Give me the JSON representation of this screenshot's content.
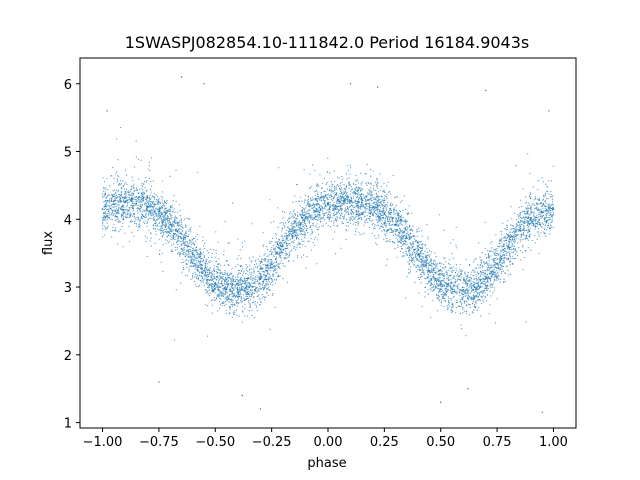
{
  "chart_data": {
    "type": "scatter",
    "title": "1SWASPJ082854.10-111842.0 Period 16184.9043s",
    "xlabel": "phase",
    "ylabel": "flux",
    "xlim": [
      -1.1,
      1.1
    ],
    "ylim": [
      0.92,
      6.38
    ],
    "xticks": [
      -1.0,
      -0.75,
      -0.5,
      -0.25,
      0.0,
      0.25,
      0.5,
      0.75,
      1.0
    ],
    "xtick_labels": [
      "−1.00",
      "−0.75",
      "−0.50",
      "−0.25",
      "0.00",
      "0.25",
      "0.50",
      "0.75",
      "1.00"
    ],
    "yticks": [
      1,
      2,
      3,
      4,
      5,
      6
    ],
    "ytick_labels": [
      "1",
      "2",
      "3",
      "4",
      "5",
      "6"
    ],
    "grid": false,
    "legend": "none",
    "point_color": "#1f77b4",
    "series": [
      {
        "x": [
          -1.0,
          -0.95,
          -0.9,
          -0.85,
          -0.8,
          -0.75,
          -0.7,
          -0.65,
          -0.6,
          -0.55,
          -0.5,
          -0.45,
          -0.4,
          -0.35,
          -0.3,
          -0.25,
          -0.2,
          -0.15,
          -0.1,
          -0.05,
          0.0,
          0.05,
          0.1,
          0.15,
          0.2,
          0.25,
          0.3,
          0.35,
          0.4,
          0.45,
          0.5,
          0.55,
          0.6,
          0.65,
          0.7,
          0.75,
          0.8,
          0.85,
          0.9,
          0.95,
          1.0
        ],
        "y": [
          4.15,
          4.22,
          4.25,
          4.23,
          4.18,
          4.08,
          3.92,
          3.72,
          3.48,
          3.24,
          3.06,
          2.97,
          2.96,
          3.0,
          3.12,
          3.34,
          3.6,
          3.84,
          4.02,
          4.15,
          4.22,
          4.26,
          4.27,
          4.25,
          4.18,
          4.08,
          3.92,
          3.72,
          3.48,
          3.24,
          3.06,
          2.97,
          2.96,
          3.0,
          3.12,
          3.34,
          3.6,
          3.84,
          4.02,
          4.1,
          4.15
        ]
      }
    ],
    "outliers": [
      {
        "x": -0.65,
        "y": 6.1
      },
      {
        "x": -0.55,
        "y": 6.0
      },
      {
        "x": 0.1,
        "y": 6.0
      },
      {
        "x": 0.22,
        "y": 5.95
      },
      {
        "x": -0.3,
        "y": 1.2
      },
      {
        "x": -0.38,
        "y": 1.4
      },
      {
        "x": 0.5,
        "y": 1.3
      },
      {
        "x": 0.95,
        "y": 1.15
      },
      {
        "x": -0.98,
        "y": 5.6
      },
      {
        "x": 0.98,
        "y": 5.6
      },
      {
        "x": 0.7,
        "y": 5.9
      },
      {
        "x": -0.75,
        "y": 1.6
      },
      {
        "x": 0.62,
        "y": 1.5
      }
    ]
  }
}
